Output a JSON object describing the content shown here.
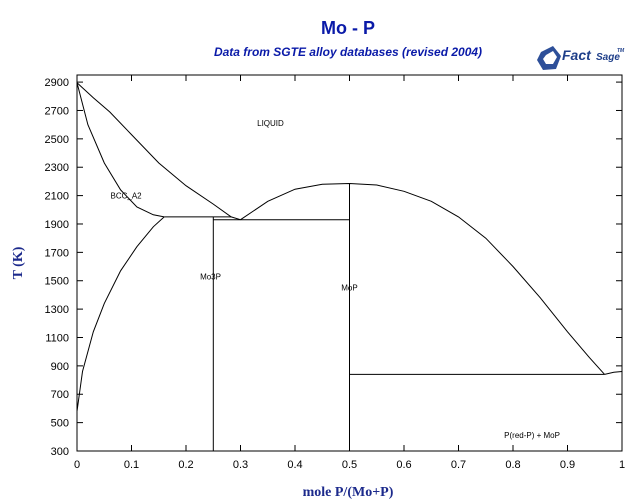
{
  "chart_data": {
    "type": "line",
    "title": "Mo - P",
    "subtitle": "Data from SGTE alloy databases (revised 2004)",
    "xlabel": "mole P/(Mo+P)",
    "ylabel": "T (K)",
    "xlim": [
      0,
      1
    ],
    "ylim": [
      300,
      2950
    ],
    "x_ticks": [
      0,
      0.1,
      0.2,
      0.3,
      0.4,
      0.5,
      0.6,
      0.7,
      0.8,
      0.9,
      1
    ],
    "x_tick_labels": [
      "0",
      "0.1",
      "0.2",
      "0.3",
      "0.4",
      "0.5",
      "0.6",
      "0.7",
      "0.8",
      "0.9",
      "1"
    ],
    "y_ticks": [
      300,
      500,
      700,
      900,
      1100,
      1300,
      1500,
      1700,
      1900,
      2100,
      2300,
      2500,
      2700,
      2900
    ],
    "y_tick_labels": [
      "300",
      "500",
      "700",
      "900",
      "1100",
      "1300",
      "1500",
      "1700",
      "1900",
      "2100",
      "2300",
      "2500",
      "2700",
      "2900"
    ],
    "grid": false,
    "series": [
      {
        "x": [
          0,
          0.03,
          0.06,
          0.1,
          0.15,
          0.2,
          0.25,
          0.283,
          0.3
        ],
        "y": [
          2895,
          2790,
          2690,
          2530,
          2330,
          2170,
          2040,
          1950,
          1930
        ]
      },
      {
        "x": [
          0,
          0.02,
          0.05,
          0.08,
          0.11,
          0.14,
          0.16
        ],
        "y": [
          2895,
          2600,
          2330,
          2140,
          2020,
          1965,
          1950
        ]
      },
      {
        "x": [
          0.16,
          0.14,
          0.11,
          0.08,
          0.05,
          0.03,
          0.01,
          0
        ],
        "y": [
          1950,
          1880,
          1740,
          1570,
          1340,
          1140,
          860,
          580
        ]
      },
      {
        "x": [
          0.16,
          0.283
        ],
        "y": [
          1950,
          1950
        ]
      },
      {
        "x": [
          0.25,
          0.5
        ],
        "y": [
          1930,
          1930
        ]
      },
      {
        "x": [
          0.25,
          0.25
        ],
        "y": [
          300,
          1950
        ]
      },
      {
        "x": [
          0.5,
          0.5
        ],
        "y": [
          300,
          2185
        ]
      },
      {
        "x": [
          0.3,
          0.35,
          0.4,
          0.45,
          0.5,
          0.55,
          0.6,
          0.65,
          0.7,
          0.75,
          0.8,
          0.85,
          0.9,
          0.94,
          0.968
        ],
        "y": [
          1930,
          2060,
          2145,
          2180,
          2185,
          2175,
          2130,
          2060,
          1950,
          1800,
          1600,
          1380,
          1140,
          960,
          840
        ]
      },
      {
        "x": [
          0.5,
          0.968
        ],
        "y": [
          840,
          840
        ]
      },
      {
        "x": [
          0.968,
          0.985,
          1.0
        ],
        "y": [
          840,
          855,
          860
        ]
      }
    ],
    "annotations": [
      {
        "text": "LIQUID",
        "x": 0.355,
        "y": 2590
      },
      {
        "text": "BCC_A2",
        "x": 0.09,
        "y": 2080
      },
      {
        "text": "Mo3P",
        "x": 0.245,
        "y": 1510
      },
      {
        "text": "MoP",
        "x": 0.5,
        "y": 1430
      },
      {
        "text": "P(red-P) + MoP",
        "x": 0.835,
        "y": 390
      }
    ]
  },
  "logo": {
    "brand": "Fact",
    "suffix": "Sage",
    "mark": "TM"
  }
}
